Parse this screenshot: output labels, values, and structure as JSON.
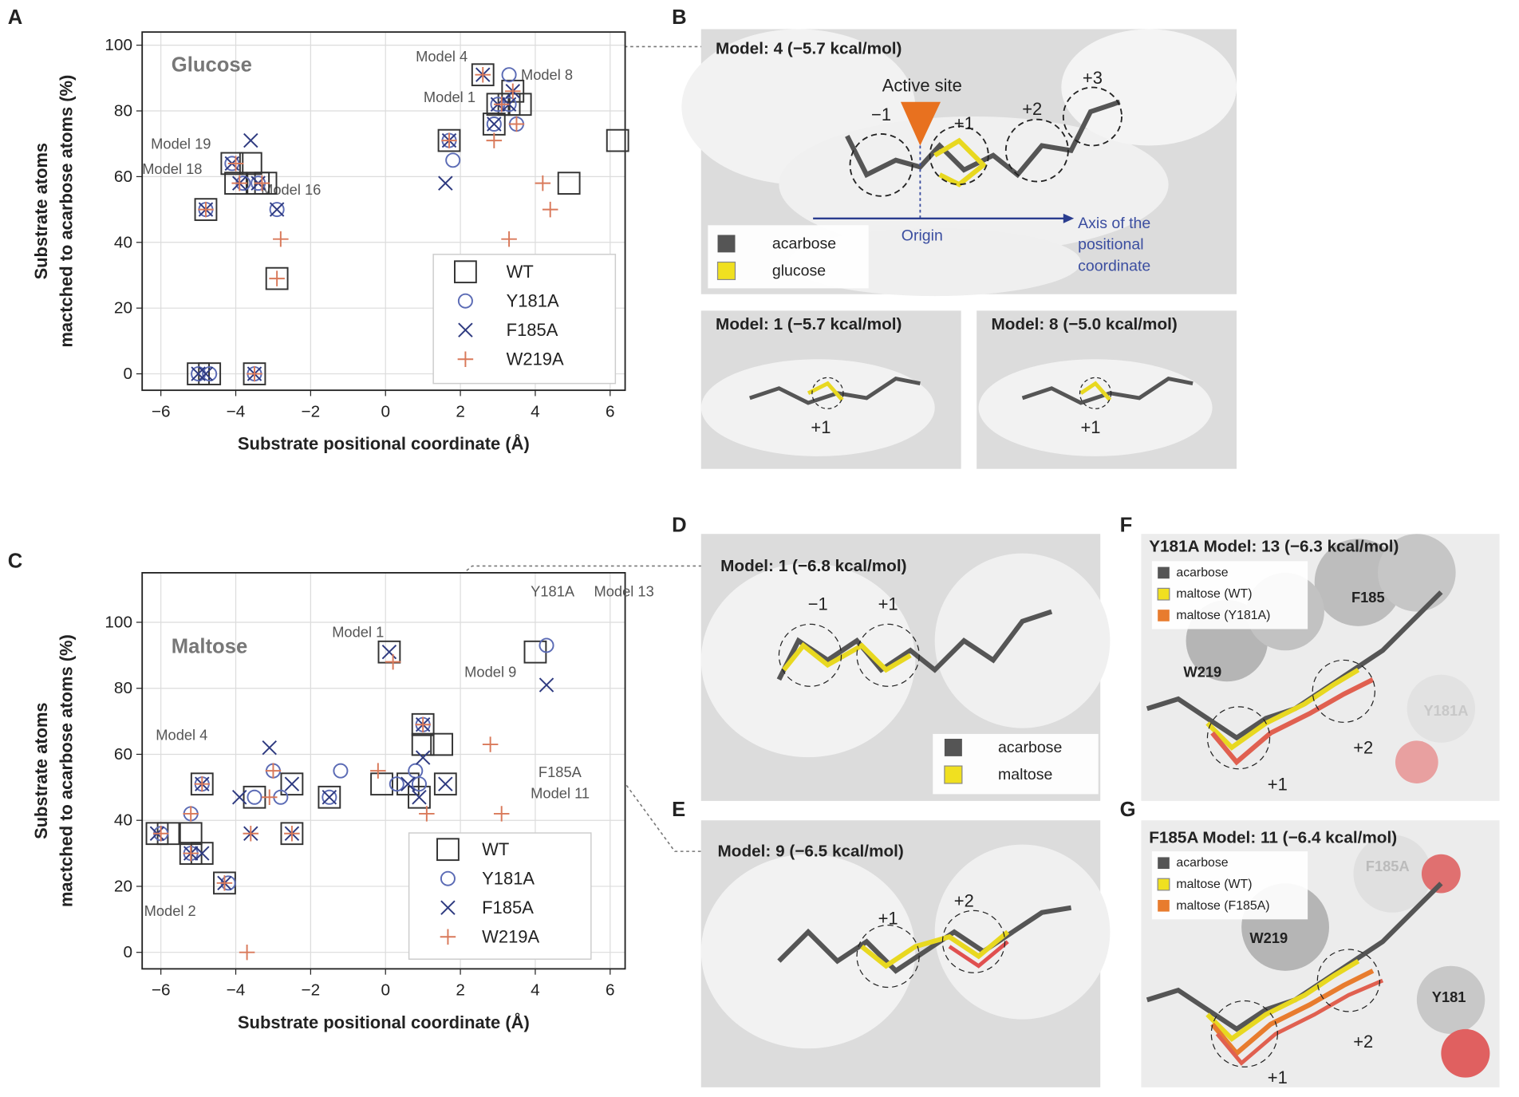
{
  "panel_labels": [
    "A",
    "B",
    "C",
    "D",
    "E",
    "F",
    "G"
  ],
  "images": {
    "B": {
      "title": "Model: 4 (−5.7 kcal/mol)",
      "active_site": "Active site",
      "subsites": [
        "−1",
        "+1",
        "+2",
        "+3"
      ],
      "origin": "Origin",
      "axis_label": [
        "Axis of the",
        "positional",
        "coordinate"
      ],
      "legend": [
        "acarbose",
        "glucose"
      ],
      "insets": [
        {
          "title": "Model: 1 (−5.7 kcal/mol)",
          "subsite": "+1"
        },
        {
          "title": "Model: 8 (−5.0 kcal/mol)",
          "subsite": "+1"
        }
      ]
    },
    "D": {
      "title": "Model: 1 (−6.8 kcal/mol)",
      "subsites": [
        "−1",
        "+1"
      ],
      "legend": [
        "acarbose",
        "maltose"
      ]
    },
    "E": {
      "title": "Model: 9 (−6.5 kcal/mol)",
      "subsites": [
        "+1",
        "+2"
      ]
    },
    "F": {
      "title": "Y181A Model: 13 (−6.3 kcal/mol)",
      "residues": [
        "F185",
        "W219",
        "Y181A"
      ],
      "subsites": [
        "+1",
        "+2"
      ],
      "legend": [
        "acarbose",
        "maltose (WT)",
        "maltose (Y181A)"
      ]
    },
    "G": {
      "title": "F185A Model: 11 (−6.4 kcal/mol)",
      "residues": [
        "F185A",
        "W219",
        "Y181"
      ],
      "subsites": [
        "+1",
        "+2"
      ],
      "legend": [
        "acarbose",
        "maltose (WT)",
        "maltose (F185A)"
      ]
    }
  },
  "chart_data": [
    {
      "type": "scatter",
      "title": "Glucose",
      "xlabel": "Substrate positional coordinate (Å)",
      "ylabel": [
        "Substrate atoms",
        "mactched to acarbose atoms (%)"
      ],
      "xlim": [
        -6.5,
        6.4
      ],
      "ylim": [
        -5,
        104
      ],
      "xticks": [
        {
          "value": -6,
          "label": "−6"
        },
        {
          "value": -4,
          "label": "−4"
        },
        {
          "value": -2,
          "label": "−2"
        },
        0,
        2,
        4,
        6
      ],
      "yticks": [
        0,
        20,
        40,
        60,
        80,
        100
      ],
      "grid": true,
      "annotations": [
        "Model 4",
        "Model 8",
        "Model 1",
        "Model 19",
        "Model 18",
        "Model 16"
      ],
      "series": [
        {
          "name": "WT",
          "color": "#333333",
          "marker": "square",
          "x": [
            2.6,
            3.3,
            3.0,
            2.9,
            3.6,
            3.4,
            1.7,
            6.2,
            4.9,
            -4.1,
            -3.6,
            -4.0,
            -3.4,
            -3.2,
            -4.8,
            -2.9,
            -5.0,
            -4.7,
            -3.5
          ],
          "y": [
            91,
            82,
            82,
            76,
            82,
            86,
            71,
            71,
            58,
            64,
            64,
            58,
            58,
            58,
            50,
            29,
            0,
            0,
            0
          ]
        },
        {
          "name": "Y181A",
          "color": "#5b6bb5",
          "marker": "circle",
          "x": [
            3.3,
            3.0,
            3.3,
            2.9,
            3.5,
            1.7,
            1.8,
            -4.1,
            -3.8,
            -3.4,
            -4.8,
            -2.9,
            -5.0,
            -4.7,
            -3.5
          ],
          "y": [
            91,
            82,
            82,
            76,
            76,
            71,
            65,
            64,
            58,
            58,
            50,
            50,
            0,
            0,
            0
          ]
        },
        {
          "name": "F185A",
          "color": "#2e3a80",
          "marker": "x",
          "x": [
            2.6,
            3.0,
            3.4,
            3.3,
            2.9,
            1.7,
            1.6,
            -3.6,
            -4.1,
            -3.9,
            -3.4,
            -4.8,
            -2.9,
            -5.0,
            -4.8,
            -3.5
          ],
          "y": [
            91,
            82,
            86,
            82,
            76,
            71,
            58,
            71,
            64,
            58,
            58,
            50,
            50,
            0,
            0,
            0
          ]
        },
        {
          "name": "W219A",
          "color": "#d9795a",
          "marker": "plus",
          "x": [
            2.6,
            3.4,
            3.1,
            3.5,
            2.9,
            1.7,
            4.2,
            4.4,
            3.3,
            -4.0,
            -3.9,
            -3.3,
            -4.8,
            -2.8,
            -2.9,
            -3.5
          ],
          "y": [
            91,
            86,
            82,
            76,
            71,
            71,
            58,
            50,
            41,
            64,
            58,
            58,
            50,
            41,
            29,
            0
          ]
        }
      ]
    },
    {
      "type": "scatter",
      "title": "Maltose",
      "xlabel": "Substrate positional coordinate (Å)",
      "ylabel": [
        "Substrate atoms",
        "mactched to acarbose atoms (%)"
      ],
      "xlim": [
        -6.5,
        6.4
      ],
      "ylim": [
        -5,
        115
      ],
      "xticks": [
        {
          "value": -6,
          "label": "−6"
        },
        {
          "value": -4,
          "label": "−4"
        },
        {
          "value": -2,
          "label": "−2"
        },
        0,
        2,
        4,
        6
      ],
      "yticks": [
        0,
        20,
        40,
        60,
        80,
        100
      ],
      "grid": true,
      "annotations": [
        "Model 1",
        "Y181A",
        "Model 13",
        "Model 9",
        "F185A",
        "Model 11",
        "Model 4",
        "Model 2"
      ],
      "series": [
        {
          "name": "WT",
          "color": "#333333",
          "marker": "square",
          "x": [
            0.1,
            4.0,
            1.0,
            1.0,
            1.5,
            -0.1,
            0.6,
            1.6,
            -4.9,
            -2.5,
            -3.5,
            -1.5,
            0.9,
            -6.1,
            -5.8,
            -5.2,
            -2.5,
            -5.2,
            -4.9,
            -4.3
          ],
          "y": [
            91,
            91,
            69,
            63,
            63,
            51,
            51,
            51,
            51,
            51,
            47,
            47,
            47,
            36,
            36,
            36,
            36,
            30,
            30,
            21
          ]
        },
        {
          "name": "Y181A",
          "color": "#5b6bb5",
          "marker": "circle",
          "x": [
            4.3,
            1.0,
            -1.2,
            -3.0,
            0.8,
            0.9,
            0.3,
            -5.2,
            -4.9,
            -3.5,
            -2.8,
            -1.5,
            -6.0,
            -5.2,
            -4.2
          ],
          "y": [
            93,
            69,
            55,
            55,
            55,
            51,
            51,
            42,
            51,
            47,
            47,
            47,
            36,
            30,
            21
          ]
        },
        {
          "name": "F185A",
          "color": "#2e3a80",
          "marker": "x",
          "x": [
            0.1,
            4.3,
            1.0,
            1.0,
            -3.1,
            -3.9,
            -2.5,
            0.6,
            0.9,
            1.6,
            -1.5,
            -4.9,
            -3.6,
            -6.1,
            -5.2,
            -4.9,
            -4.3,
            -2.5
          ],
          "y": [
            91,
            81,
            69,
            59,
            62,
            47,
            51,
            51,
            47,
            51,
            47,
            51,
            36,
            36,
            30,
            30,
            21,
            36
          ]
        },
        {
          "name": "W219A",
          "color": "#d9795a",
          "marker": "plus",
          "x": [
            0.2,
            1.0,
            2.8,
            -0.2,
            -3.0,
            -3.1,
            1.1,
            3.1,
            -5.2,
            -4.9,
            -3.6,
            -2.5,
            -6.0,
            -5.2,
            -4.3,
            -3.7
          ],
          "y": [
            88,
            69,
            63,
            55,
            55,
            47,
            42,
            42,
            42,
            51,
            36,
            36,
            36,
            30,
            21,
            0
          ]
        }
      ]
    }
  ]
}
